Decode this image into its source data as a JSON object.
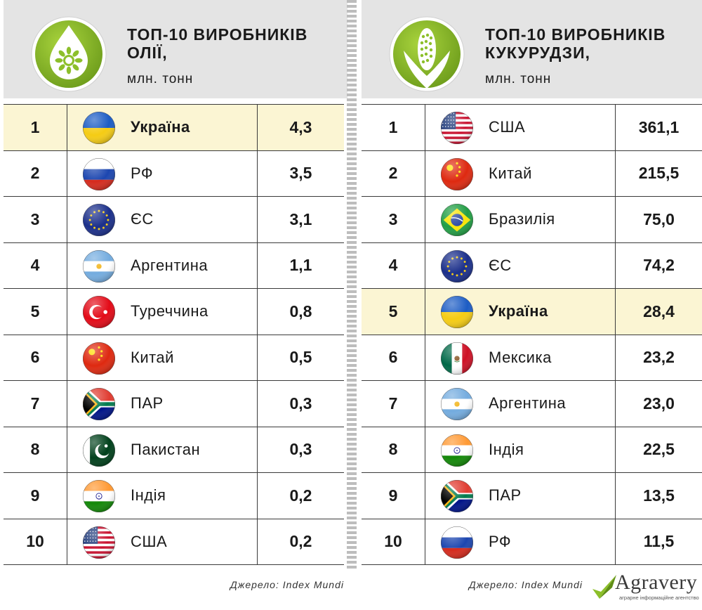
{
  "chart_data": [
    {
      "type": "table",
      "title": "ТОП-10 ВИРОБНИКІВ\nОЛІЇ,",
      "unit": "млн. тонн",
      "rows": [
        {
          "rank": "1",
          "country": "Україна",
          "value": 4.3,
          "value_label": "4,3",
          "highlight": true,
          "flag": "flag-ukraine"
        },
        {
          "rank": "2",
          "country": "РФ",
          "value": 3.5,
          "value_label": "3,5",
          "highlight": false,
          "flag": "flag-russia"
        },
        {
          "rank": "3",
          "country": "ЄС",
          "value": 3.1,
          "value_label": "3,1",
          "highlight": false,
          "flag": "flag-eu"
        },
        {
          "rank": "4",
          "country": "Аргентина",
          "value": 1.1,
          "value_label": "1,1",
          "highlight": false,
          "flag": "flag-argentina"
        },
        {
          "rank": "5",
          "country": "Туреччина",
          "value": 0.8,
          "value_label": "0,8",
          "highlight": false,
          "flag": "flag-turkey"
        },
        {
          "rank": "6",
          "country": "Китай",
          "value": 0.5,
          "value_label": "0,5",
          "highlight": false,
          "flag": "flag-china"
        },
        {
          "rank": "7",
          "country": "ПАР",
          "value": 0.3,
          "value_label": "0,3",
          "highlight": false,
          "flag": "flag-south-africa"
        },
        {
          "rank": "8",
          "country": "Пакистан",
          "value": 0.3,
          "value_label": "0,3",
          "highlight": false,
          "flag": "flag-pakistan"
        },
        {
          "rank": "9",
          "country": "Індія",
          "value": 0.2,
          "value_label": "0,2",
          "highlight": false,
          "flag": "flag-india"
        },
        {
          "rank": "10",
          "country": "США",
          "value": 0.2,
          "value_label": "0,2",
          "highlight": false,
          "flag": "flag-usa"
        }
      ]
    },
    {
      "type": "table",
      "title": "ТОП-10 ВИРОБНИКІВ\nКУКУРУДЗИ,",
      "unit": "млн. тонн",
      "rows": [
        {
          "rank": "1",
          "country": "США",
          "value": 361.1,
          "value_label": "361,1",
          "highlight": false,
          "flag": "flag-usa"
        },
        {
          "rank": "2",
          "country": "Китай",
          "value": 215.5,
          "value_label": "215,5",
          "highlight": false,
          "flag": "flag-china"
        },
        {
          "rank": "3",
          "country": "Бразилія",
          "value": 75.0,
          "value_label": "75,0",
          "highlight": false,
          "flag": "flag-brazil"
        },
        {
          "rank": "4",
          "country": "ЄС",
          "value": 74.2,
          "value_label": "74,2",
          "highlight": false,
          "flag": "flag-eu"
        },
        {
          "rank": "5",
          "country": "Україна",
          "value": 28.4,
          "value_label": "28,4",
          "highlight": true,
          "flag": "flag-ukraine"
        },
        {
          "rank": "6",
          "country": "Мексика",
          "value": 23.2,
          "value_label": "23,2",
          "highlight": false,
          "flag": "flag-mexico"
        },
        {
          "rank": "7",
          "country": "Аргентина",
          "value": 23.0,
          "value_label": "23,0",
          "highlight": false,
          "flag": "flag-argentina"
        },
        {
          "rank": "8",
          "country": "Індія",
          "value": 22.5,
          "value_label": "22,5",
          "highlight": false,
          "flag": "flag-india"
        },
        {
          "rank": "9",
          "country": "ПАР",
          "value": 13.5,
          "value_label": "13,5",
          "highlight": false,
          "flag": "flag-south-africa"
        },
        {
          "rank": "10",
          "country": "РФ",
          "value": 11.5,
          "value_label": "11,5",
          "highlight": false,
          "flag": "flag-russia"
        }
      ]
    }
  ],
  "header_icons": [
    "sunflower-oil-drop-icon",
    "corn-icon"
  ],
  "source_left": "Джерело: Index Mundi",
  "source_right": "Джерело: Index Mundi",
  "logo": {
    "word": "Agravery",
    "tagline": "аграрне інформаційне агентство",
    "icon": "checkmark-leaf-icon"
  },
  "colors": {
    "header_bg": "#e4e4e4",
    "highlight_bg": "#fbf5d3",
    "emblem_green": "#8cbf2a",
    "line": "#3a3a3a"
  }
}
